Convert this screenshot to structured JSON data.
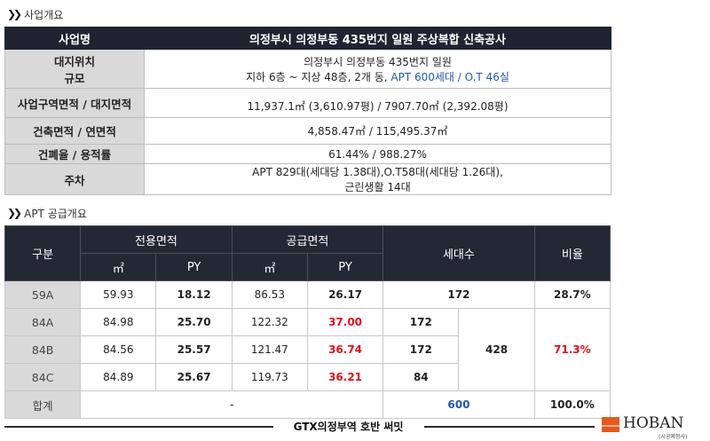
{
  "section1": {
    "title": "사업개요"
  },
  "overview": {
    "header": {
      "label": "사업명",
      "value": "의정부시 의정부동 435번지 일원 주상복합 신축공사"
    },
    "site_label": "대지위치",
    "scale_label": "규모",
    "site_value": "의정부시 의정부동 435번지 일원",
    "scale_value_a": "지하 6층 ~ 지상 48층, 2개 동,",
    "scale_value_b": "APT 600세대 / O.T 46실",
    "area_label": "사업구역면적 / 대지면적",
    "area_value": "11,937.1㎡ (3,610.97평) / 7907.70㎡ (2,392.08평)",
    "building_label": "건축면적 / 연면적",
    "building_value": "4,858.47㎡ / 115,495.37㎡",
    "ratio_label": "건폐율 / 용적률",
    "ratio_value": "61.44% / 988.27%",
    "parking_label": "주차",
    "parking_value_1": "APT 829대(세대당 1.38대),O.T58대(세대당 1.26대),",
    "parking_value_2": "근린생활 14대"
  },
  "section2": {
    "title": "APT 공급개요"
  },
  "apt": {
    "headers": {
      "type": "구분",
      "exclusive": "전용면적",
      "supply": "공급면적",
      "households": "세대수",
      "ratio": "비율",
      "m2": "㎡",
      "py": "PY"
    },
    "rows": [
      {
        "type": "59A",
        "ex_m2": "59.93",
        "ex_py": "18.12",
        "sup_m2": "86.53",
        "sup_py": "26.17",
        "households": "172",
        "ratio": "28.7%"
      },
      {
        "type": "84A",
        "ex_m2": "84.98",
        "ex_py": "25.70",
        "sup_m2": "122.32",
        "sup_py": "37.00",
        "households": "172"
      },
      {
        "type": "84B",
        "ex_m2": "84.56",
        "ex_py": "25.57",
        "sup_m2": "121.47",
        "sup_py": "36.74",
        "households": "172"
      },
      {
        "type": "84C",
        "ex_m2": "84.89",
        "ex_py": "25.67",
        "sup_m2": "119.73",
        "sup_py": "36.21",
        "households": "84"
      }
    ],
    "group84_total": "428",
    "group84_ratio": "71.3%",
    "total": {
      "label": "합계",
      "dash": "-",
      "households": "600",
      "ratio": "100.0%"
    }
  },
  "footer": {
    "text": "GTX의정부역 호반 써밋",
    "logo": "HOBAN",
    "logo_sub": "(시공예정사)"
  },
  "colors": {
    "header_dark": "#1f2430",
    "label_gray": "#d9d9d9",
    "accent_red": "#e0101c",
    "accent_blue": "#1f5aa8",
    "logo_orange": "#e35a1c"
  }
}
